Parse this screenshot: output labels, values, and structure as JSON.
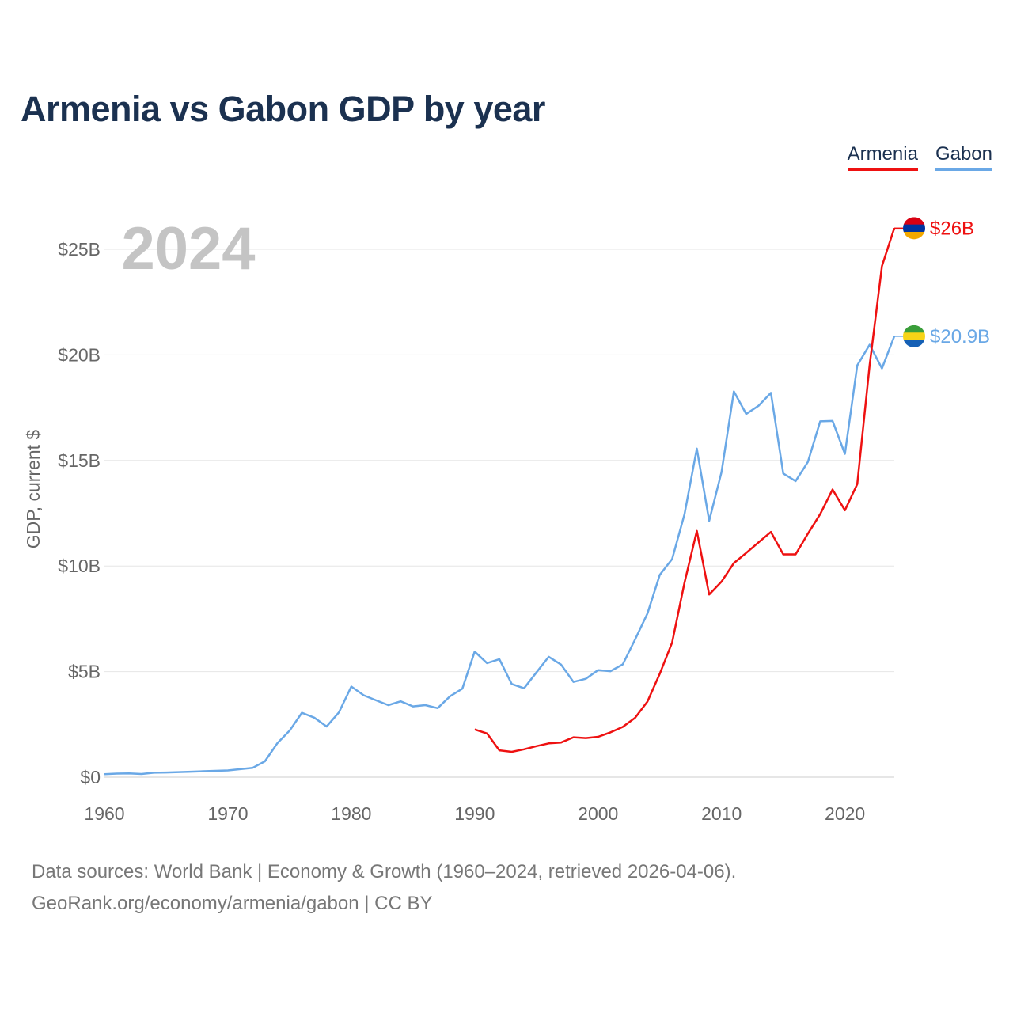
{
  "title": "Armenia vs Gabon GDP by year",
  "year_label": "2024",
  "legend": [
    {
      "name": "Armenia",
      "color": "#ee1111"
    },
    {
      "name": "Gabon",
      "color": "#6aa8e6"
    }
  ],
  "source_line1": "Data sources: World Bank | Economy & Growth (1960–2024, retrieved 2026-04-06).",
  "source_line2": "GeoRank.org/economy/armenia/gabon | CC BY",
  "chart_data": {
    "type": "line",
    "title": "Armenia vs Gabon GDP by year",
    "xlabel": "",
    "ylabel": "GDP, current $",
    "xlim": [
      1960,
      2024
    ],
    "ylim": [
      0,
      27
    ],
    "x_ticks": [
      1960,
      1970,
      1980,
      1990,
      2000,
      2010,
      2020
    ],
    "x_tick_labels": [
      "1960",
      "1970",
      "1980",
      "1990",
      "2000",
      "2010",
      "2020"
    ],
    "y_ticks": [
      0,
      5,
      10,
      15,
      20,
      25
    ],
    "y_tick_labels": [
      "$0",
      "$5B",
      "$10B",
      "$15B",
      "$20B",
      "$25B"
    ],
    "grid": true,
    "series": [
      {
        "name": "Gabon",
        "color": "#6aa8e6",
        "end_label": "$20.9B",
        "flag": [
          "#3a9e3a",
          "#f7d417",
          "#1560b5"
        ],
        "x": [
          1960,
          1961,
          1962,
          1963,
          1964,
          1965,
          1966,
          1967,
          1968,
          1969,
          1970,
          1971,
          1972,
          1973,
          1974,
          1975,
          1976,
          1977,
          1978,
          1979,
          1980,
          1981,
          1982,
          1983,
          1984,
          1985,
          1986,
          1987,
          1988,
          1989,
          1990,
          1991,
          1992,
          1993,
          1994,
          1995,
          1996,
          1997,
          1998,
          1999,
          2000,
          2001,
          2002,
          2003,
          2004,
          2005,
          2006,
          2007,
          2008,
          2009,
          2010,
          2011,
          2012,
          2013,
          2014,
          2015,
          2016,
          2017,
          2018,
          2019,
          2020,
          2021,
          2022,
          2023,
          2024
        ],
        "values": [
          0.14,
          0.17,
          0.18,
          0.15,
          0.21,
          0.22,
          0.24,
          0.26,
          0.28,
          0.3,
          0.32,
          0.38,
          0.44,
          0.75,
          1.6,
          2.2,
          3.05,
          2.82,
          2.4,
          3.07,
          4.29,
          3.88,
          3.64,
          3.41,
          3.59,
          3.35,
          3.41,
          3.27,
          3.83,
          4.19,
          5.95,
          5.4,
          5.59,
          4.41,
          4.21,
          4.96,
          5.7,
          5.33,
          4.51,
          4.66,
          5.07,
          5.02,
          5.34,
          6.52,
          7.75,
          9.58,
          10.33,
          12.45,
          15.56,
          12.14,
          14.45,
          18.27,
          17.2,
          17.59,
          18.2,
          14.38,
          14.02,
          14.93,
          16.85,
          16.87,
          15.31,
          19.5,
          20.48,
          19.36,
          20.88
        ]
      },
      {
        "name": "Armenia",
        "color": "#ee1111",
        "end_label": "$26B",
        "flag": [
          "#d90012",
          "#0033a0",
          "#f2a800"
        ],
        "x": [
          1990,
          1991,
          1992,
          1993,
          1994,
          1995,
          1996,
          1997,
          1998,
          1999,
          2000,
          2001,
          2002,
          2003,
          2004,
          2005,
          2006,
          2007,
          2008,
          2009,
          2010,
          2011,
          2012,
          2013,
          2014,
          2015,
          2016,
          2017,
          2018,
          2019,
          2020,
          2021,
          2022,
          2023,
          2024
        ],
        "values": [
          2.26,
          2.07,
          1.27,
          1.2,
          1.32,
          1.47,
          1.6,
          1.64,
          1.89,
          1.85,
          1.91,
          2.12,
          2.38,
          2.81,
          3.58,
          4.9,
          6.38,
          9.21,
          11.66,
          8.65,
          9.26,
          10.14,
          10.62,
          11.12,
          11.61,
          10.55,
          10.55,
          11.53,
          12.46,
          13.62,
          12.64,
          13.88,
          19.5,
          24.2,
          26.0
        ]
      }
    ]
  }
}
